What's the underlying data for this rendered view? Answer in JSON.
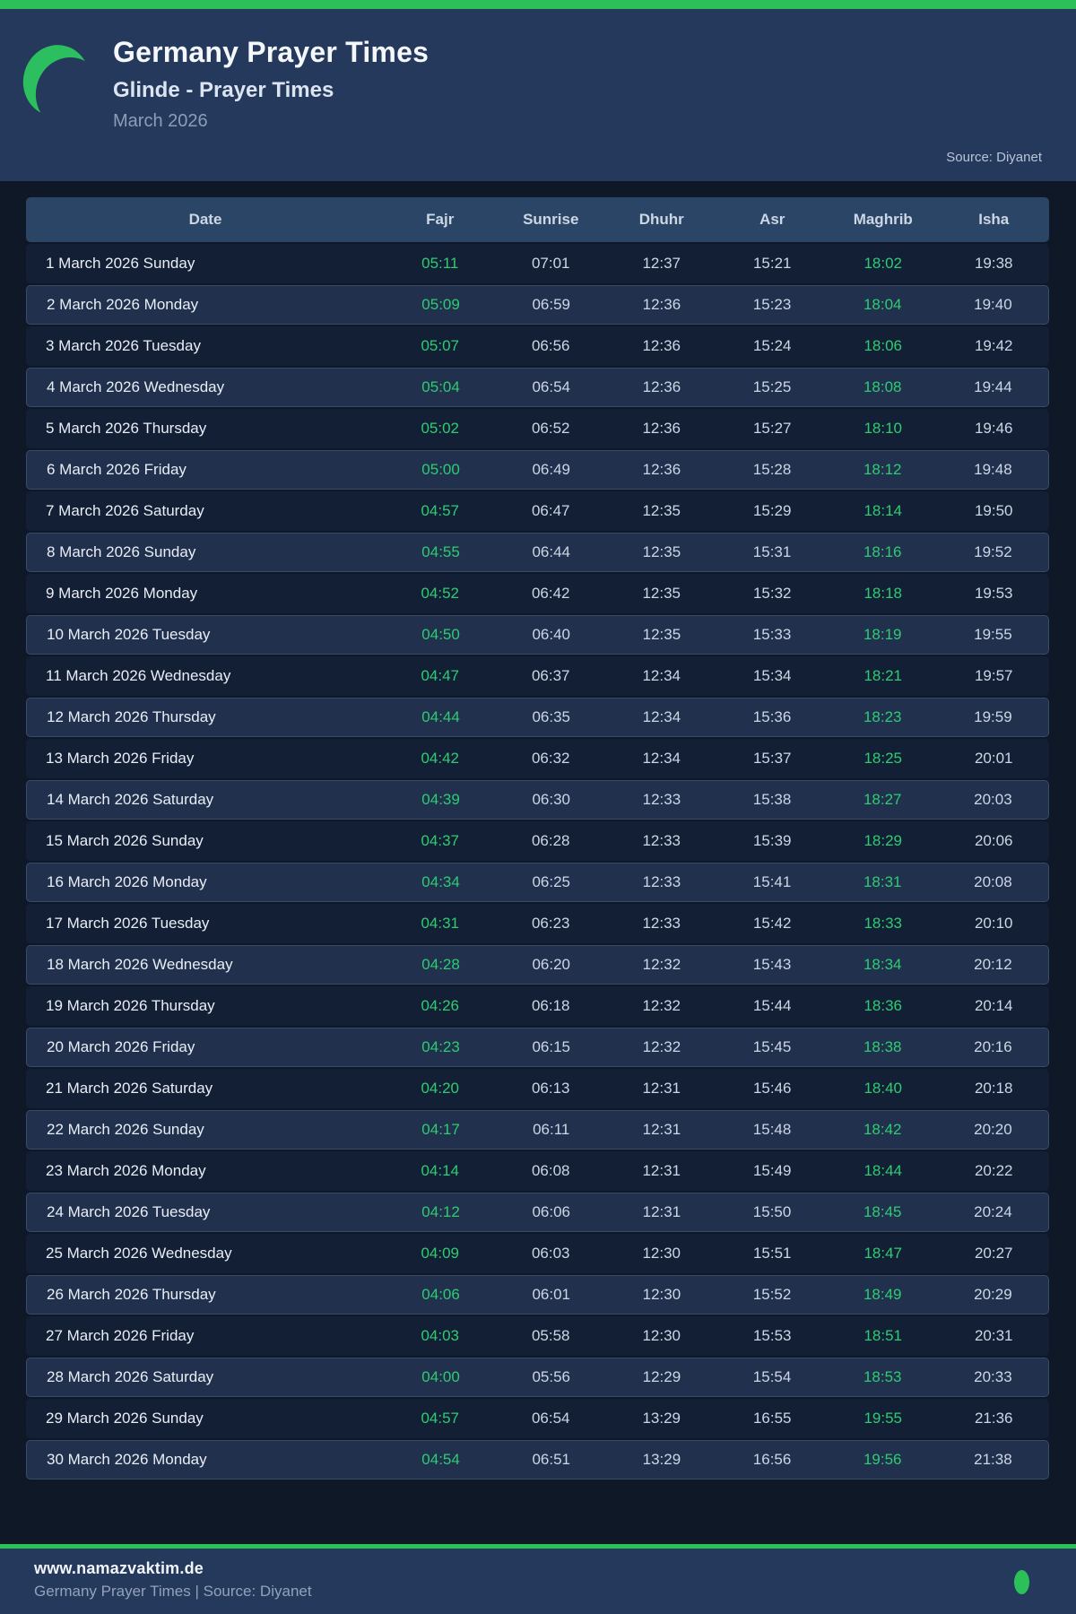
{
  "colors": {
    "accent_green": "#2ecc71",
    "bar_green": "#2bc158",
    "page_bg": "#0e1827",
    "panel_bg": "#24395b",
    "table_head_bg": "#2b4566",
    "row_odd_bg": "#131f35",
    "row_even_bg": "#20304d"
  },
  "header": {
    "title": "Germany Prayer Times",
    "subtitle": "Glinde - Prayer Times",
    "month": "March 2026",
    "source": "Source: Diyanet",
    "moon_icon": "crescent-moon-icon"
  },
  "table": {
    "columns": [
      "Date",
      "Fajr",
      "Sunrise",
      "Dhuhr",
      "Asr",
      "Maghrib",
      "Isha"
    ],
    "rows": [
      {
        "date": "1 March 2026 Sunday",
        "fajr": "05:11",
        "sunrise": "07:01",
        "dhuhr": "12:37",
        "asr": "15:21",
        "maghrib": "18:02",
        "isha": "19:38"
      },
      {
        "date": "2 March 2026 Monday",
        "fajr": "05:09",
        "sunrise": "06:59",
        "dhuhr": "12:36",
        "asr": "15:23",
        "maghrib": "18:04",
        "isha": "19:40"
      },
      {
        "date": "3 March 2026 Tuesday",
        "fajr": "05:07",
        "sunrise": "06:56",
        "dhuhr": "12:36",
        "asr": "15:24",
        "maghrib": "18:06",
        "isha": "19:42"
      },
      {
        "date": "4 March 2026 Wednesday",
        "fajr": "05:04",
        "sunrise": "06:54",
        "dhuhr": "12:36",
        "asr": "15:25",
        "maghrib": "18:08",
        "isha": "19:44"
      },
      {
        "date": "5 March 2026 Thursday",
        "fajr": "05:02",
        "sunrise": "06:52",
        "dhuhr": "12:36",
        "asr": "15:27",
        "maghrib": "18:10",
        "isha": "19:46"
      },
      {
        "date": "6 March 2026 Friday",
        "fajr": "05:00",
        "sunrise": "06:49",
        "dhuhr": "12:36",
        "asr": "15:28",
        "maghrib": "18:12",
        "isha": "19:48"
      },
      {
        "date": "7 March 2026 Saturday",
        "fajr": "04:57",
        "sunrise": "06:47",
        "dhuhr": "12:35",
        "asr": "15:29",
        "maghrib": "18:14",
        "isha": "19:50"
      },
      {
        "date": "8 March 2026 Sunday",
        "fajr": "04:55",
        "sunrise": "06:44",
        "dhuhr": "12:35",
        "asr": "15:31",
        "maghrib": "18:16",
        "isha": "19:52"
      },
      {
        "date": "9 March 2026 Monday",
        "fajr": "04:52",
        "sunrise": "06:42",
        "dhuhr": "12:35",
        "asr": "15:32",
        "maghrib": "18:18",
        "isha": "19:53"
      },
      {
        "date": "10 March 2026 Tuesday",
        "fajr": "04:50",
        "sunrise": "06:40",
        "dhuhr": "12:35",
        "asr": "15:33",
        "maghrib": "18:19",
        "isha": "19:55"
      },
      {
        "date": "11 March 2026 Wednesday",
        "fajr": "04:47",
        "sunrise": "06:37",
        "dhuhr": "12:34",
        "asr": "15:34",
        "maghrib": "18:21",
        "isha": "19:57"
      },
      {
        "date": "12 March 2026 Thursday",
        "fajr": "04:44",
        "sunrise": "06:35",
        "dhuhr": "12:34",
        "asr": "15:36",
        "maghrib": "18:23",
        "isha": "19:59"
      },
      {
        "date": "13 March 2026 Friday",
        "fajr": "04:42",
        "sunrise": "06:32",
        "dhuhr": "12:34",
        "asr": "15:37",
        "maghrib": "18:25",
        "isha": "20:01"
      },
      {
        "date": "14 March 2026 Saturday",
        "fajr": "04:39",
        "sunrise": "06:30",
        "dhuhr": "12:33",
        "asr": "15:38",
        "maghrib": "18:27",
        "isha": "20:03"
      },
      {
        "date": "15 March 2026 Sunday",
        "fajr": "04:37",
        "sunrise": "06:28",
        "dhuhr": "12:33",
        "asr": "15:39",
        "maghrib": "18:29",
        "isha": "20:06"
      },
      {
        "date": "16 March 2026 Monday",
        "fajr": "04:34",
        "sunrise": "06:25",
        "dhuhr": "12:33",
        "asr": "15:41",
        "maghrib": "18:31",
        "isha": "20:08"
      },
      {
        "date": "17 March 2026 Tuesday",
        "fajr": "04:31",
        "sunrise": "06:23",
        "dhuhr": "12:33",
        "asr": "15:42",
        "maghrib": "18:33",
        "isha": "20:10"
      },
      {
        "date": "18 March 2026 Wednesday",
        "fajr": "04:28",
        "sunrise": "06:20",
        "dhuhr": "12:32",
        "asr": "15:43",
        "maghrib": "18:34",
        "isha": "20:12"
      },
      {
        "date": "19 March 2026 Thursday",
        "fajr": "04:26",
        "sunrise": "06:18",
        "dhuhr": "12:32",
        "asr": "15:44",
        "maghrib": "18:36",
        "isha": "20:14"
      },
      {
        "date": "20 March 2026 Friday",
        "fajr": "04:23",
        "sunrise": "06:15",
        "dhuhr": "12:32",
        "asr": "15:45",
        "maghrib": "18:38",
        "isha": "20:16"
      },
      {
        "date": "21 March 2026 Saturday",
        "fajr": "04:20",
        "sunrise": "06:13",
        "dhuhr": "12:31",
        "asr": "15:46",
        "maghrib": "18:40",
        "isha": "20:18"
      },
      {
        "date": "22 March 2026 Sunday",
        "fajr": "04:17",
        "sunrise": "06:11",
        "dhuhr": "12:31",
        "asr": "15:48",
        "maghrib": "18:42",
        "isha": "20:20"
      },
      {
        "date": "23 March 2026 Monday",
        "fajr": "04:14",
        "sunrise": "06:08",
        "dhuhr": "12:31",
        "asr": "15:49",
        "maghrib": "18:44",
        "isha": "20:22"
      },
      {
        "date": "24 March 2026 Tuesday",
        "fajr": "04:12",
        "sunrise": "06:06",
        "dhuhr": "12:31",
        "asr": "15:50",
        "maghrib": "18:45",
        "isha": "20:24"
      },
      {
        "date": "25 March 2026 Wednesday",
        "fajr": "04:09",
        "sunrise": "06:03",
        "dhuhr": "12:30",
        "asr": "15:51",
        "maghrib": "18:47",
        "isha": "20:27"
      },
      {
        "date": "26 March 2026 Thursday",
        "fajr": "04:06",
        "sunrise": "06:01",
        "dhuhr": "12:30",
        "asr": "15:52",
        "maghrib": "18:49",
        "isha": "20:29"
      },
      {
        "date": "27 March 2026 Friday",
        "fajr": "04:03",
        "sunrise": "05:58",
        "dhuhr": "12:30",
        "asr": "15:53",
        "maghrib": "18:51",
        "isha": "20:31"
      },
      {
        "date": "28 March 2026 Saturday",
        "fajr": "04:00",
        "sunrise": "05:56",
        "dhuhr": "12:29",
        "asr": "15:54",
        "maghrib": "18:53",
        "isha": "20:33"
      },
      {
        "date": "29 March 2026 Sunday",
        "fajr": "04:57",
        "sunrise": "06:54",
        "dhuhr": "13:29",
        "asr": "16:55",
        "maghrib": "19:55",
        "isha": "21:36"
      },
      {
        "date": "30 March 2026 Monday",
        "fajr": "04:54",
        "sunrise": "06:51",
        "dhuhr": "13:29",
        "asr": "16:56",
        "maghrib": "19:56",
        "isha": "21:38"
      }
    ]
  },
  "footer": {
    "site": "www.namazvaktim.de",
    "line2": "Germany Prayer Times | Source: Diyanet",
    "dot_icon": "green-dot-icon"
  }
}
